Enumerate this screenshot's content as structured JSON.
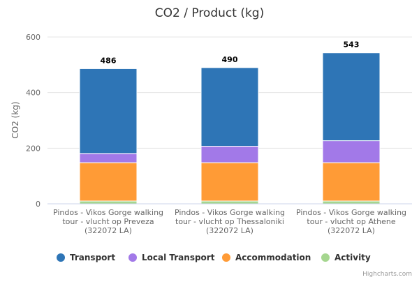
{
  "chart_data": {
    "type": "bar",
    "stacked": true,
    "title": "CO2 / Product (kg)",
    "xlabel": "",
    "ylabel": "CO2 (kg)",
    "ylim": [
      0,
      600
    ],
    "yticks": [
      0,
      200,
      400,
      600
    ],
    "grid": true,
    "legend_position": "bottom",
    "categories": [
      [
        "Pindos - Vikos Gorge walking",
        "tour - vlucht op Preveza",
        "(322072 LA)"
      ],
      [
        "Pindos - Vikos Gorge walking",
        "tour - vlucht op Thessaloniki",
        "(322072 LA)"
      ],
      [
        "Pindos - Vikos Gorge walking",
        "tour - vlucht op Athene",
        "(322072 LA)"
      ]
    ],
    "series": [
      {
        "name": "Activity",
        "color": "#a5d68f",
        "values": [
          10,
          10,
          10
        ]
      },
      {
        "name": "Accommodation",
        "color": "#ff9b36",
        "values": [
          138,
          138,
          138
        ]
      },
      {
        "name": "Local Transport",
        "color": "#a279e8",
        "values": [
          33,
          59,
          79
        ]
      },
      {
        "name": "Transport",
        "color": "#2e75b6",
        "values": [
          305,
          283,
          316
        ]
      }
    ],
    "totals": [
      "486",
      "490",
      "543"
    ],
    "legend_order": [
      "Transport",
      "Local Transport",
      "Accommodation",
      "Activity"
    ],
    "credits": "Highcharts.com"
  }
}
